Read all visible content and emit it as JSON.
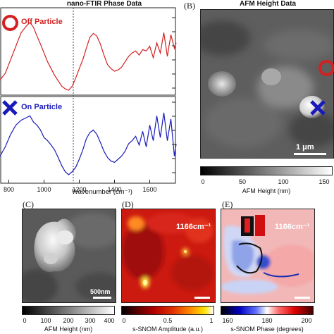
{
  "panelA": {
    "title": "nano-FTIR Phase Data",
    "off_label": "Off Particle",
    "on_label": "On Particle",
    "off_color": "#d42020",
    "on_color": "#1a1ab8",
    "xlabel": "Wavenumber (cm⁻¹)",
    "ref_line_wavenumber": 1166
  },
  "panelB": {
    "letter": "(B)",
    "title": "AFM Height Data",
    "scalebar_text": "1 μm",
    "cbar_label": "AFM Height (nm)",
    "cbar_ticks": [
      "0",
      "50",
      "100",
      "150"
    ]
  },
  "panelC": {
    "letter": "(C)",
    "scalebar_text": "500nm",
    "cbar_label": "AFM Height (nm)",
    "cbar_ticks": [
      "0",
      "100",
      "200",
      "300",
      "400"
    ]
  },
  "panelD": {
    "letter": "(D)",
    "wavenumber_text": "1166cm⁻¹",
    "cbar_label": "s-SNOM Amplitude (a.u.)",
    "cbar_ticks": [
      "0",
      "0.5",
      "1"
    ]
  },
  "panelE": {
    "letter": "(E)",
    "wavenumber_text": "1166cm⁻¹",
    "cbar_label": "s-SNOM Phase (degrees)",
    "cbar_ticks": [
      "160",
      "180",
      "200"
    ]
  },
  "chart_data": [
    {
      "type": "line",
      "title": "nano-FTIR Phase Data",
      "xlabel": "Wavenumber (cm⁻¹)",
      "ylabel": "",
      "xlim": [
        750,
        1750
      ],
      "x_ticks": [
        800,
        1000,
        1200,
        1400,
        1600
      ],
      "series": [
        {
          "name": "Off Particle",
          "x": [
            750,
            780,
            810,
            840,
            870,
            900,
            920,
            940,
            960,
            980,
            1000,
            1020,
            1040,
            1060,
            1080,
            1100,
            1120,
            1140,
            1160,
            1180,
            1200,
            1220,
            1240,
            1260,
            1280,
            1300,
            1320,
            1340,
            1360,
            1380,
            1400,
            1420,
            1440,
            1460,
            1480,
            1500,
            1520,
            1540,
            1560,
            1580,
            1600,
            1620,
            1640,
            1660,
            1680,
            1700,
            1720,
            1740,
            1750
          ],
          "y": [
            0.15,
            0.25,
            0.45,
            0.65,
            0.85,
            0.95,
            1.0,
            0.93,
            0.8,
            0.68,
            0.55,
            0.42,
            0.32,
            0.22,
            0.14,
            0.06,
            0.02,
            0.0,
            0.06,
            0.18,
            0.32,
            0.45,
            0.62,
            0.78,
            0.84,
            0.8,
            0.68,
            0.52,
            0.38,
            0.32,
            0.28,
            0.3,
            0.34,
            0.42,
            0.5,
            0.55,
            0.58,
            0.52,
            0.6,
            0.58,
            0.65,
            0.48,
            0.7,
            0.55,
            0.85,
            0.5,
            0.82,
            0.62,
            0.7
          ]
        },
        {
          "name": "On Particle",
          "x": [
            750,
            780,
            810,
            840,
            870,
            900,
            920,
            940,
            960,
            980,
            1000,
            1020,
            1040,
            1060,
            1080,
            1100,
            1120,
            1140,
            1160,
            1180,
            1200,
            1220,
            1240,
            1260,
            1280,
            1300,
            1320,
            1340,
            1360,
            1380,
            1400,
            1420,
            1440,
            1460,
            1480,
            1500,
            1520,
            1540,
            1560,
            1580,
            1600,
            1620,
            1640,
            1660,
            1680,
            1700,
            1720,
            1740,
            1750
          ],
          "y": [
            0.3,
            0.45,
            0.65,
            0.8,
            0.88,
            0.92,
            0.95,
            0.85,
            0.8,
            0.72,
            0.6,
            0.55,
            0.48,
            0.4,
            0.28,
            0.15,
            0.05,
            0.0,
            0.05,
            0.12,
            0.25,
            0.4,
            0.58,
            0.68,
            0.72,
            0.65,
            0.52,
            0.38,
            0.28,
            0.22,
            0.2,
            0.25,
            0.3,
            0.38,
            0.5,
            0.55,
            0.62,
            0.48,
            0.7,
            0.45,
            0.8,
            0.55,
            0.95,
            0.6,
            1.0,
            0.55,
            0.9,
            0.3,
            0.5
          ]
        }
      ],
      "ref_line_x": 1166
    }
  ]
}
